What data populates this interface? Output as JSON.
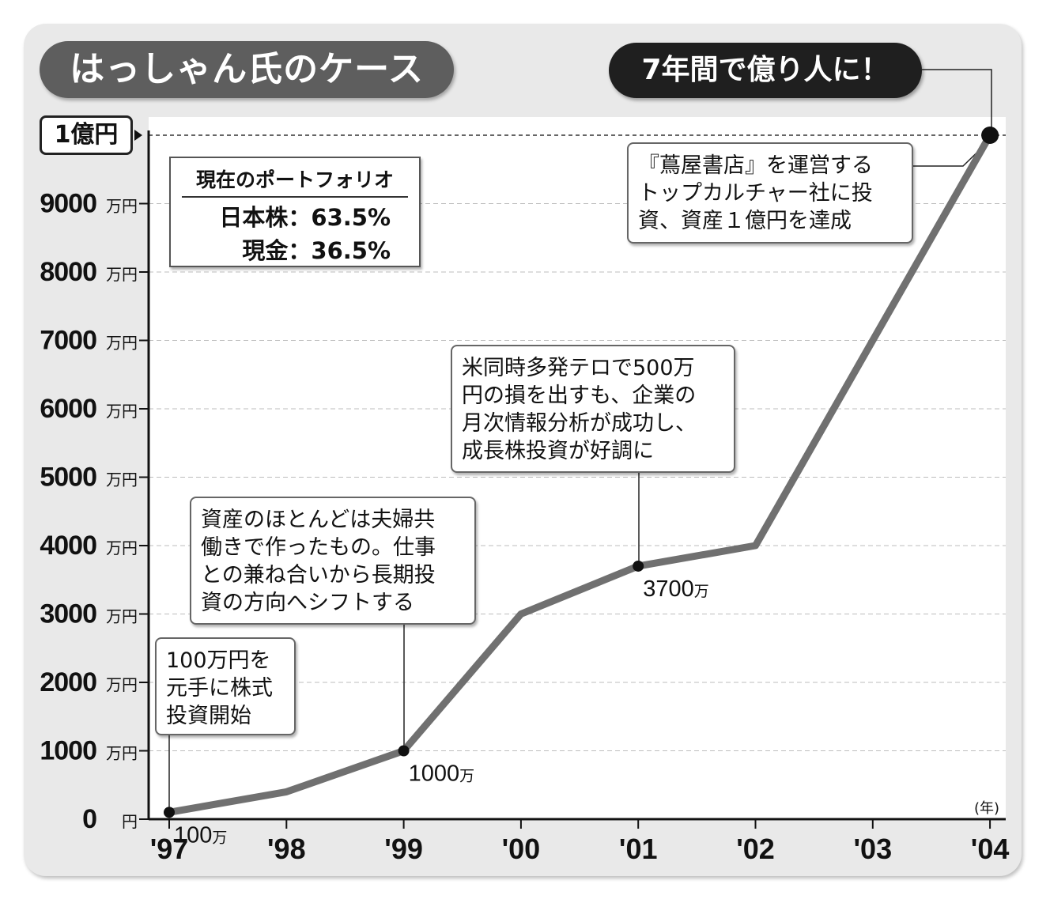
{
  "title": "はっしゃん氏のケース",
  "headline": "7年間で億り人に！",
  "portfolio": {
    "title": "現在のポートフォリオ",
    "rows": [
      "日本株：63.5%",
      "現金：36.5%"
    ]
  },
  "callouts": {
    "start": "100万円を\n元手に株式\n投資開始",
    "y99": "資産のほとんどは夫婦共\n働きで作ったもの。仕事\nとの兼ね合いから長期投\n資の方向へシフトする",
    "y01": "米同時多発テロで500万\n円の損を出すも、企業の\n月次情報分析が成功し、\n成長株投資が好調に",
    "y04": "『蔦屋書店』を運営する\nトップカルチャー社に投\n資、資産１億円を達成"
  },
  "unit_badge": "1億円",
  "year_unit": "(年)",
  "chart_data": {
    "type": "line",
    "categories": [
      "'97",
      "'98",
      "'99",
      "'00",
      "'01",
      "'02",
      "'03",
      "'04"
    ],
    "values": [
      100,
      400,
      1000,
      3000,
      3700,
      4000,
      7000,
      10000
    ],
    "ylim": [
      0,
      10000
    ],
    "yticks": [
      0,
      1000,
      2000,
      3000,
      4000,
      5000,
      6000,
      7000,
      8000,
      9000
    ],
    "ytick_labels": [
      "0",
      "1000",
      "2000",
      "3000",
      "4000",
      "5000",
      "6000",
      "7000",
      "8000",
      "9000"
    ],
    "ytick_units": [
      "円",
      "万円",
      "万円",
      "万円",
      "万円",
      "万円",
      "万円",
      "万円",
      "万円",
      "万円"
    ],
    "reference_line": 10000,
    "marked_points": [
      {
        "index": 0,
        "label": "100万"
      },
      {
        "index": 2,
        "label": "1000万"
      },
      {
        "index": 4,
        "label": "3700万"
      },
      {
        "index": 7,
        "label": ""
      }
    ],
    "grid": true,
    "line_color": "#707070"
  }
}
